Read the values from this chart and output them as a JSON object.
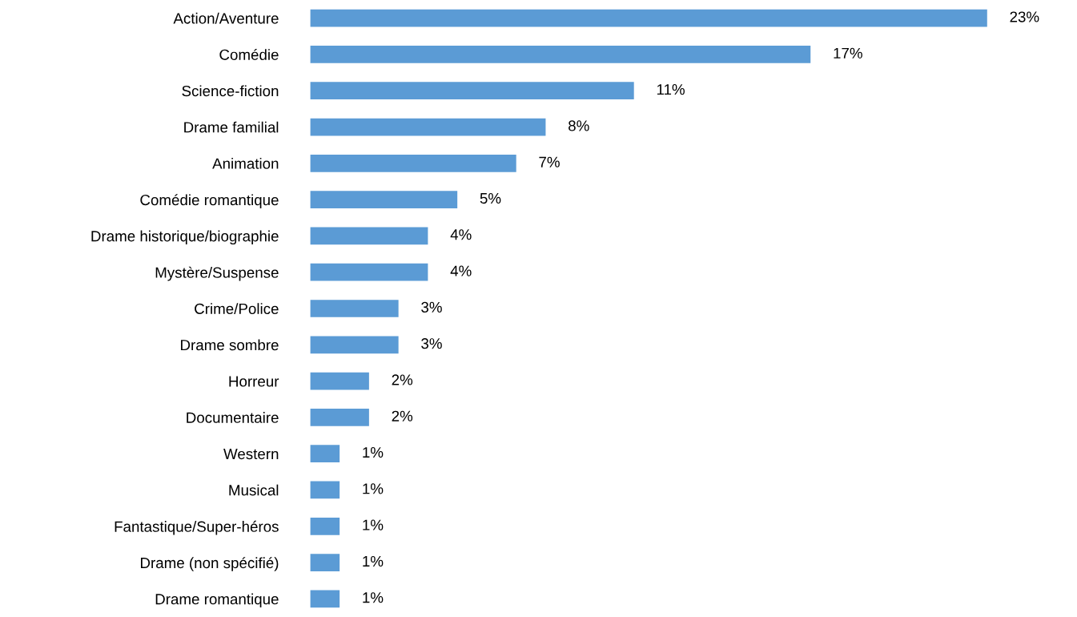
{
  "chart_data": {
    "type": "bar",
    "orientation": "horizontal",
    "categories": [
      "Action/Aventure",
      "Comédie",
      "Science-fiction",
      "Drame familial",
      "Animation",
      "Comédie romantique",
      "Drame historique/biographie",
      "Mystère/Suspense",
      "Crime/Police",
      "Drame sombre",
      "Horreur",
      "Documentaire",
      "Western",
      "Musical",
      "Fantastique/Super-héros",
      "Drame (non spécifié)",
      "Drame romantique"
    ],
    "values": [
      23,
      17,
      11,
      8,
      7,
      5,
      4,
      4,
      3,
      3,
      2,
      2,
      1,
      1,
      1,
      1,
      1
    ],
    "value_labels": [
      "23%",
      "17%",
      "11%",
      "8%",
      "7%",
      "5%",
      "4%",
      "4%",
      "3%",
      "3%",
      "2%",
      "2%",
      "1%",
      "1%",
      "1%",
      "1%",
      "1%"
    ],
    "color": "#5b9bd5",
    "tick_labels": "y",
    "grid": false,
    "legend": false
  }
}
